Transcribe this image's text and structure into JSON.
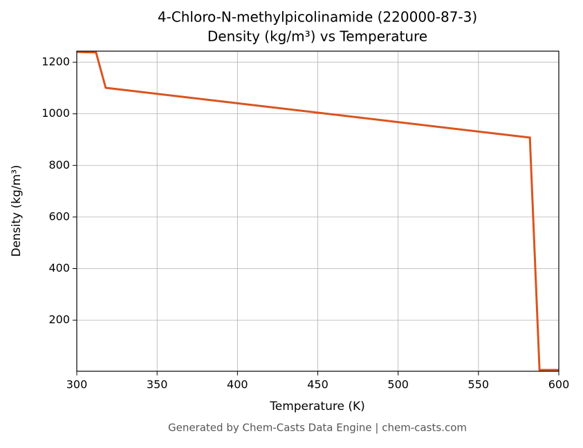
{
  "chart_data": {
    "type": "line",
    "title": "4-Chloro-N-methylpicolinamide (220000-87-3)",
    "subtitle": "Density (kg/m³) vs Temperature",
    "x_label": "Temperature (K)",
    "y_label": "Density (kg/m³)",
    "x": [
      300,
      312,
      318,
      582,
      588,
      600
    ],
    "series": [
      {
        "name": "Density",
        "color": "#d9541e",
        "values": [
          1240,
          1238,
          1101,
          908,
          7,
          7
        ]
      }
    ],
    "xlim": [
      300,
      600
    ],
    "xticks": [
      300,
      350,
      400,
      450,
      500,
      550,
      600
    ],
    "ylim": [
      2,
      1243
    ],
    "yticks": [
      200,
      400,
      600,
      800,
      1000,
      1200
    ],
    "grid": true,
    "footer": "Generated by Chem-Casts Data Engine | chem-casts.com"
  }
}
